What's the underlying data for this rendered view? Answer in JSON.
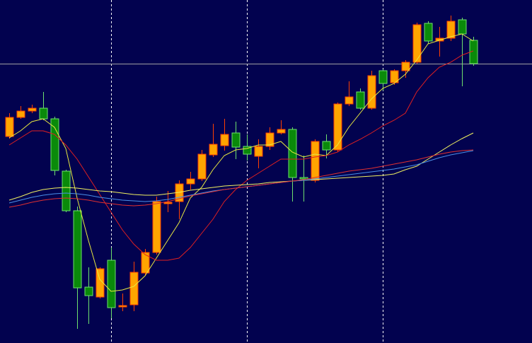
{
  "chart_data": {
    "type": "candlestick",
    "background": "#02024f",
    "up_color": "#ffa500",
    "up_edge": "#ff4000",
    "down_color": "#0a8a0a",
    "down_edge": "#6ee06e",
    "ylim": [
      0,
      485
    ],
    "open": [
      292,
      319,
      328,
      332,
      317,
      243,
      187,
      79,
      65,
      117,
      51,
      54,
      99,
      128,
      197,
      200,
      225,
      232,
      266,
      279,
      297,
      278,
      264,
      278,
      297,
      302,
      234,
      230,
      285,
      273,
      338,
      355,
      332,
      385,
      368,
      385,
      397,
      452,
      427,
      431,
      457,
      428
    ],
    "high": [
      325,
      335,
      337,
      355,
      320,
      245,
      193,
      107,
      107,
      135,
      70,
      115,
      133,
      207,
      215,
      230,
      242,
      273,
      310,
      317,
      313,
      295,
      288,
      305,
      315,
      305,
      265,
      288,
      295,
      340,
      370,
      360,
      385,
      387,
      387,
      400,
      453,
      455,
      447,
      463,
      460,
      433
    ],
    "low": [
      289,
      317,
      325,
      315,
      237,
      185,
      20,
      27,
      63,
      35,
      45,
      45,
      95,
      125,
      185,
      175,
      217,
      229,
      263,
      272,
      260,
      258,
      247,
      273,
      295,
      200,
      200,
      227,
      261,
      270,
      335,
      330,
      330,
      357,
      365,
      375,
      395,
      423,
      405,
      427,
      363,
      392
    ],
    "close": [
      319,
      328,
      332,
      317,
      244,
      187,
      78,
      67,
      105,
      50,
      53,
      100,
      128,
      200,
      199,
      225,
      232,
      267,
      281,
      295,
      277,
      267,
      278,
      297,
      302,
      234,
      232,
      285,
      273,
      338,
      348,
      332,
      378,
      367,
      385,
      397,
      450,
      427,
      431,
      455,
      437,
      395
    ],
    "lines": [
      {
        "color": "#e8e840",
        "values": [
          290,
          300,
          313,
          317,
          305,
          275,
          205,
          145,
          90,
          73,
          75,
          80,
          95,
          120,
          145,
          170,
          205,
          220,
          245,
          265,
          273,
          275,
          280,
          280,
          285,
          270,
          263,
          267,
          265,
          280,
          305,
          325,
          345,
          360,
          367,
          380,
          400,
          423,
          428,
          433,
          437,
          427
        ]
      },
      {
        "color": "#e02020",
        "values": [
          280,
          290,
          300,
          300,
          295,
          280,
          260,
          235,
          210,
          185,
          160,
          140,
          125,
          117,
          117,
          120,
          135,
          155,
          175,
          200,
          217,
          230,
          240,
          250,
          260,
          260,
          260,
          263,
          265,
          270,
          280,
          288,
          297,
          307,
          315,
          325,
          355,
          375,
          390,
          397,
          407,
          413
        ]
      },
      {
        "color": "#f0f060",
        "values": [
          202,
          207,
          213,
          217,
          219,
          220,
          219,
          217,
          215,
          214,
          212,
          210,
          209,
          209,
          211,
          213,
          216,
          218,
          220,
          222,
          223,
          224,
          225,
          227,
          228,
          229,
          230,
          231,
          232,
          233,
          234,
          235,
          236,
          237,
          239,
          245,
          250,
          260,
          270,
          280,
          289,
          297
        ]
      },
      {
        "color": "#4a90e8",
        "values": [
          198,
          202,
          206,
          209,
          211,
          212,
          211,
          209,
          206,
          204,
          202,
          201,
          200,
          201,
          203,
          206,
          209,
          212,
          215,
          217,
          219,
          221,
          223,
          225,
          227,
          229,
          230,
          232,
          234,
          236,
          238,
          240,
          242,
          244,
          246,
          249,
          252,
          257,
          262,
          266,
          269,
          272
        ]
      },
      {
        "color": "#e03030",
        "values": [
          192,
          195,
          199,
          202,
          204,
          205,
          204,
          202,
          199,
          197,
          195,
          194,
          195,
          197,
          200,
          204,
          208,
          211,
          214,
          217,
          219,
          221,
          223,
          225,
          227,
          229,
          231,
          234,
          237,
          240,
          243,
          245,
          247,
          250,
          253,
          256,
          259,
          263,
          267,
          270,
          272,
          273
        ]
      }
    ],
    "price_line": 395
  }
}
